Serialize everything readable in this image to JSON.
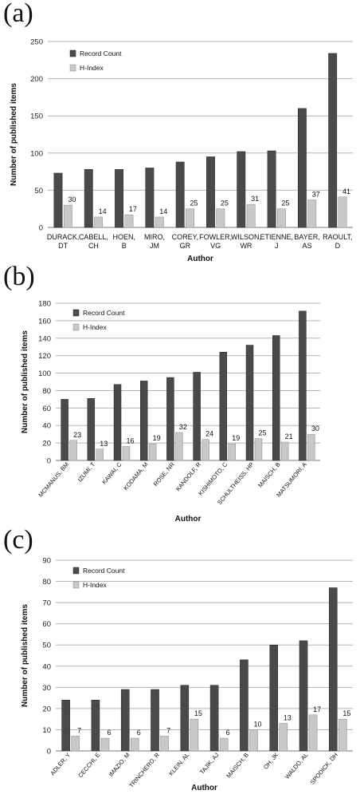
{
  "chart_data": [
    {
      "panel_label": "(a)",
      "type": "bar",
      "categories": [
        "DURACK, DT",
        "CABELL, CH",
        "HOEN, B",
        "MIRO, JM",
        "COREY, GR",
        "FOWLER, VG",
        "WILSON, WR",
        "ETIENNE, J",
        "BAYER, AS",
        "RAOULT, D"
      ],
      "series": [
        {
          "name": "Record Count",
          "values": [
            73,
            78,
            78,
            80,
            88,
            95,
            102,
            103,
            160,
            234
          ]
        },
        {
          "name": "H-Index",
          "values": [
            30,
            14,
            17,
            14,
            25,
            25,
            31,
            25,
            37,
            41
          ]
        }
      ],
      "data_labels": [
        "30",
        "14",
        "17",
        "14",
        "25",
        "25",
        "31",
        "25",
        "37",
        "41"
      ],
      "ylabel": "Number of published items",
      "xlabel": "Author",
      "ylim": [
        0,
        250
      ],
      "yticks": [
        0,
        50,
        100,
        150,
        200,
        250
      ],
      "grid": true,
      "legend": "top-left",
      "colors": {
        "record": "#4a4a4a",
        "hindex": "#c8c8c8"
      }
    },
    {
      "panel_label": "(b)",
      "type": "bar",
      "categories": [
        "MCMANUS, BM",
        "IZUMI, T",
        "KAWAI, C",
        "KODAMA, M",
        "ROSE, NR",
        "KANDOLF, R",
        "KISHIMOTO, C",
        "SCHULTHEISS, HP",
        "MAISCH, B",
        "MATSUMORI, A"
      ],
      "series": [
        {
          "name": "Record Count",
          "values": [
            70,
            71,
            87,
            91,
            95,
            101,
            124,
            132,
            143,
            171
          ]
        },
        {
          "name": "H-Index",
          "values": [
            23,
            13,
            16,
            19,
            32,
            24,
            19,
            25,
            21,
            30
          ]
        }
      ],
      "data_labels": [
        "23",
        "13",
        "16",
        "19",
        "32",
        "24",
        "19",
        "25",
        "21",
        "30"
      ],
      "ylabel": "Number of published items",
      "xlabel": "Author",
      "ylim": [
        0,
        180
      ],
      "yticks": [
        0,
        20,
        40,
        60,
        80,
        100,
        120,
        140,
        160,
        180
      ],
      "grid": true,
      "legend": "top-left",
      "colors": {
        "record": "#4a4a4a",
        "hindex": "#c8c8c8"
      }
    },
    {
      "panel_label": "(c)",
      "type": "bar",
      "categories": [
        "ADLER, Y",
        "CECCHI, E",
        "IMAZIO, M",
        "TRINCHERO, R",
        "KLEIN, AL",
        "TAJIK, AJ",
        "MAISCH, B",
        "OH, JK",
        "WALDO, AL",
        "SPODICK, DH"
      ],
      "series": [
        {
          "name": "Record Count",
          "values": [
            24,
            24,
            29,
            29,
            31,
            31,
            43,
            50,
            52,
            77
          ]
        },
        {
          "name": "H-Index",
          "values": [
            7,
            6,
            6,
            7,
            15,
            6,
            10,
            13,
            17,
            15
          ]
        }
      ],
      "data_labels": [
        "7",
        "6",
        "6",
        "7",
        "15",
        "6",
        "10",
        "13",
        "17",
        "15"
      ],
      "ylabel": "Number of published items",
      "xlabel": "Author",
      "ylim": [
        0,
        90
      ],
      "yticks": [
        0,
        10,
        20,
        30,
        40,
        50,
        60,
        70,
        80,
        90
      ],
      "grid": true,
      "legend": "top-left",
      "colors": {
        "record": "#4a4a4a",
        "hindex": "#c8c8c8"
      }
    }
  ]
}
